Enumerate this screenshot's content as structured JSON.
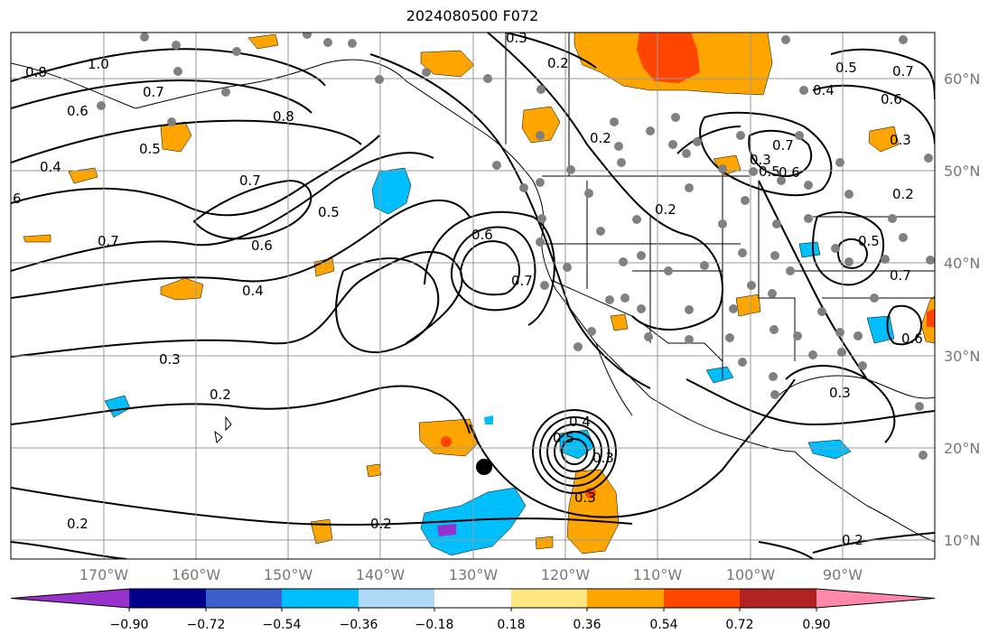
{
  "title": "2024080500 F072",
  "lat_labels": [
    "60°N",
    "50°N",
    "40°N",
    "30°N",
    "20°N",
    "10°N"
  ],
  "lon_labels": [
    "170°W",
    "160°W",
    "150°W",
    "140°W",
    "130°W",
    "120°W",
    "110°W",
    "100°W",
    "90°W"
  ],
  "colorbar": {
    "ticks": [
      "−0.90",
      "−0.72",
      "−0.54",
      "−0.36",
      "−0.18",
      "0.18",
      "0.36",
      "0.54",
      "0.72",
      "0.90"
    ],
    "colors": [
      "#9932cc",
      "#00008b",
      "#3a5fcd",
      "#00bfff",
      "#add8f6",
      "#ffffff",
      "#ffe680",
      "#ffa500",
      "#ff4500",
      "#b22222",
      "#ff88aa"
    ]
  },
  "contour_labels": [
    "0.3",
    "0.2",
    "0.8",
    "1.0",
    "0.6",
    "0.4",
    "6",
    "0.7",
    "0.5",
    "0.8",
    "0.7",
    "0.6",
    "0.4",
    "0.5",
    "0.7",
    "0.3",
    "0.2",
    "0.6",
    "0.7",
    "0.2",
    "0.2",
    "0.7",
    "0.5",
    "0.6",
    "0.3",
    "0.2",
    "0.5",
    "0.4",
    "0.7",
    "0.6",
    "0.5",
    "0.7",
    "0.6",
    "0.3",
    "0.4",
    "0.5",
    "0.3",
    "0.3",
    "0.2",
    "0.2",
    "0.2",
    "0.3"
  ],
  "colors": {
    "fill_orange": "#ffa500",
    "fill_red": "#ff4500",
    "fill_cyan": "#00bfff",
    "fill_purple": "#9932cc",
    "station": "#808080",
    "grid": "#999999"
  }
}
